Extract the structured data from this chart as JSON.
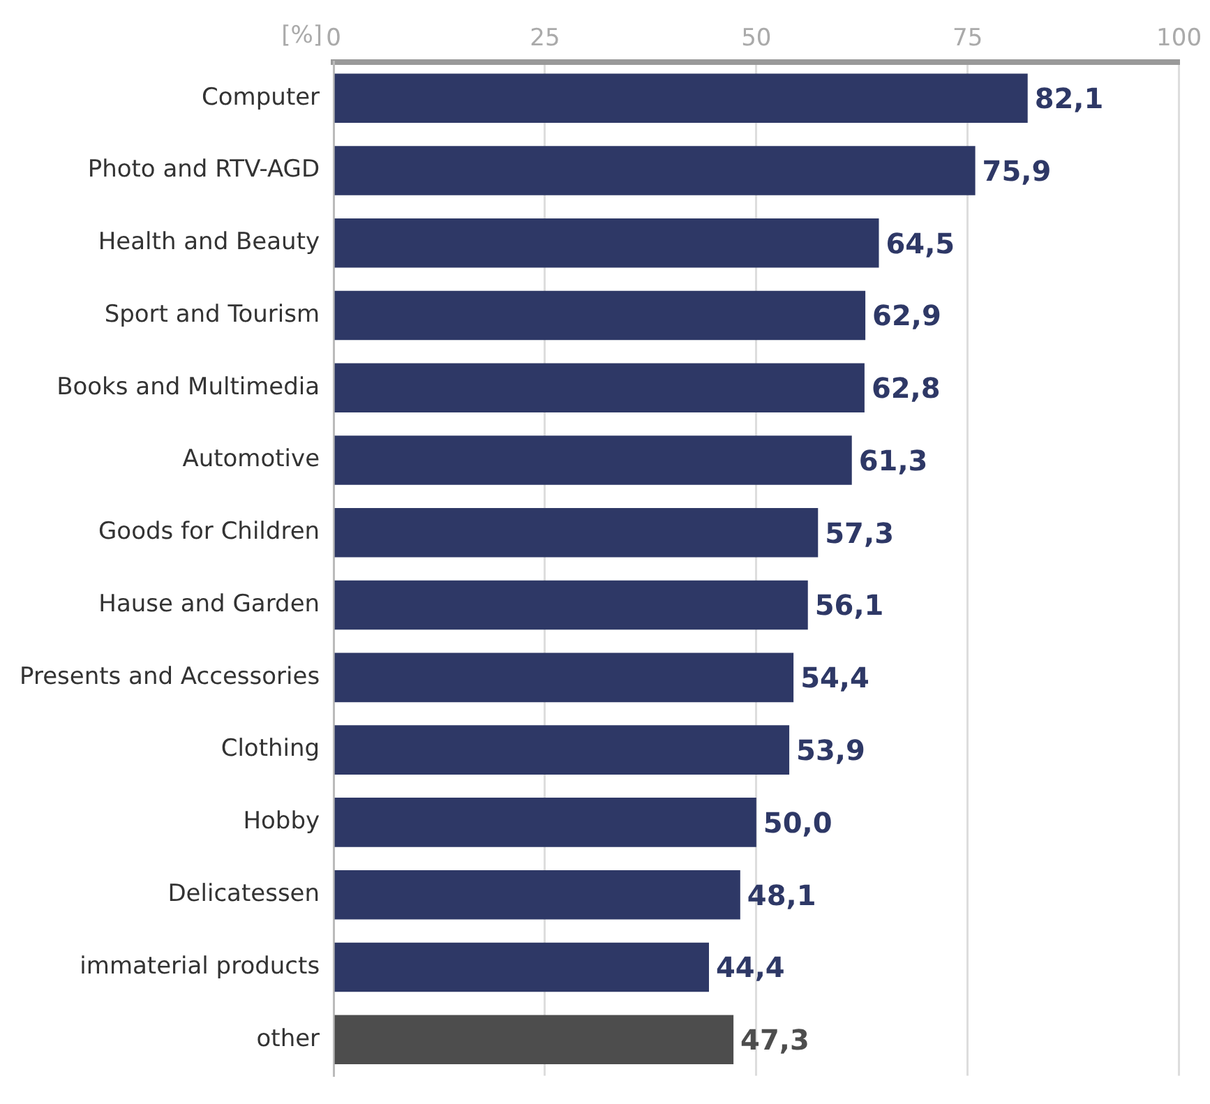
{
  "chart_data": {
    "type": "bar",
    "orientation": "horizontal",
    "xlabel": "[%]",
    "categories": [
      "Computer",
      "Photo and RTV-AGD",
      "Health and Beauty",
      "Sport and Tourism",
      "Books and Multimedia",
      "Automotive",
      "Goods for Children",
      "Hause and Garden",
      "Presents and Accessories",
      "Clothing",
      "Hobby",
      "Delicatessen",
      "immaterial products",
      "other"
    ],
    "values": [
      82.1,
      75.9,
      64.5,
      62.9,
      62.8,
      61.3,
      57.3,
      56.1,
      54.4,
      53.9,
      50.0,
      48.1,
      44.4,
      47.3
    ],
    "value_labels": [
      "82,1",
      "75,9",
      "64,5",
      "62,9",
      "62,8",
      "61,3",
      "57,3",
      "56,1",
      "54,4",
      "53,9",
      "50,0",
      "48,1",
      "44,4",
      "47,3"
    ],
    "colors": [
      "#2e3866",
      "#2e3866",
      "#2e3866",
      "#2e3866",
      "#2e3866",
      "#2e3866",
      "#2e3866",
      "#2e3866",
      "#2e3866",
      "#2e3866",
      "#2e3866",
      "#2e3866",
      "#2e3866",
      "#4d4d4d"
    ],
    "xlim": [
      0,
      100
    ],
    "xticks": [
      0,
      25,
      50,
      75,
      100
    ],
    "grid": "x",
    "legend": false
  }
}
